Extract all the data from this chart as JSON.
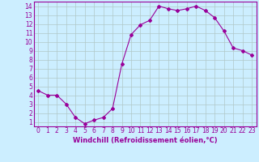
{
  "x": [
    0,
    1,
    2,
    3,
    4,
    5,
    6,
    7,
    8,
    9,
    10,
    11,
    12,
    13,
    14,
    15,
    16,
    17,
    18,
    19,
    20,
    21,
    22,
    23
  ],
  "y": [
    4.5,
    4.0,
    4.0,
    3.0,
    1.5,
    0.8,
    1.2,
    1.5,
    2.5,
    7.5,
    10.8,
    11.9,
    12.4,
    14.0,
    13.7,
    13.5,
    13.7,
    14.0,
    13.5,
    12.7,
    11.2,
    9.3,
    9.0,
    8.5
  ],
  "line_color": "#990099",
  "marker": "D",
  "marker_size": 2.0,
  "bg_color": "#cceeff",
  "grid_color": "#b0c8c8",
  "xlabel": "Windchill (Refroidissement éolien,°C)",
  "xlabel_color": "#990099",
  "xlim": [
    -0.5,
    23.5
  ],
  "ylim": [
    0.5,
    14.5
  ],
  "yticks": [
    1,
    2,
    3,
    4,
    5,
    6,
    7,
    8,
    9,
    10,
    11,
    12,
    13,
    14
  ],
  "xticks": [
    0,
    1,
    2,
    3,
    4,
    5,
    6,
    7,
    8,
    9,
    10,
    11,
    12,
    13,
    14,
    15,
    16,
    17,
    18,
    19,
    20,
    21,
    22,
    23
  ],
  "tick_color": "#990099",
  "spine_color": "#990099",
  "tick_fontsize": 5.5,
  "xlabel_fontsize": 6.0
}
